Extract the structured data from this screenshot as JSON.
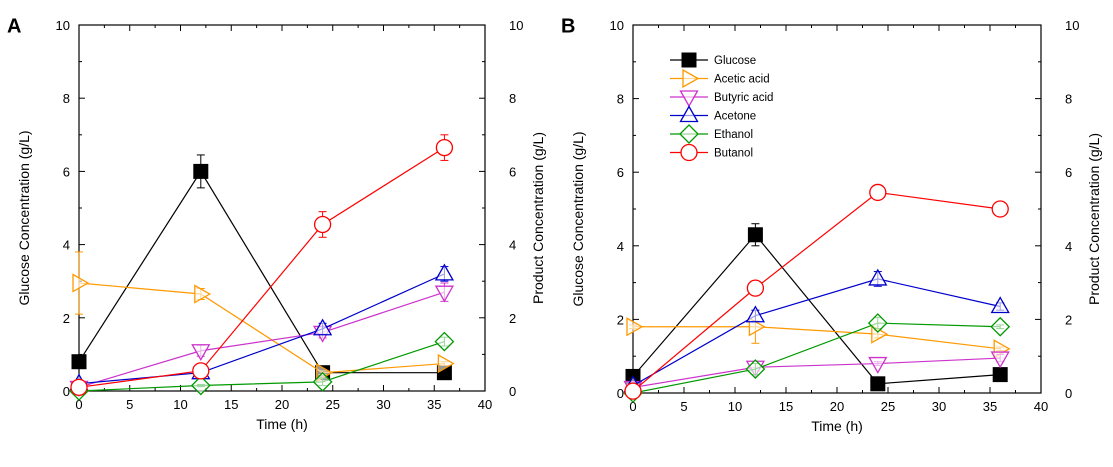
{
  "chart_data": [
    {
      "type": "line",
      "panel_label": "A",
      "xlabel": "Time (h)",
      "ylabel_left": "Glucose Concentration (g/L)",
      "ylabel_right": "Product Concentration (g/L)",
      "xlim": [
        0,
        40
      ],
      "ylim_left": [
        0,
        10
      ],
      "ylim_right": [
        0,
        10
      ],
      "xticks": [
        0,
        5,
        10,
        15,
        20,
        25,
        30,
        35,
        40
      ],
      "yticks": [
        0,
        2,
        4,
        6,
        8,
        10
      ],
      "grid": false,
      "legend": "none",
      "series": [
        {
          "name": "Glucose",
          "axis": "left",
          "color": "#000000",
          "marker": "square-filled",
          "x": [
            0,
            12,
            24,
            36
          ],
          "y": [
            0.8,
            6.0,
            0.5,
            0.5
          ],
          "err": [
            0.05,
            0.45,
            0.05,
            0.05
          ]
        },
        {
          "name": "Acetic acid",
          "axis": "right",
          "color": "#FF9900",
          "marker": "triangle-right",
          "x": [
            0,
            12,
            24,
            36
          ],
          "y": [
            2.95,
            2.65,
            0.5,
            0.75
          ],
          "err": [
            0.85,
            0.15,
            0.05,
            0.05
          ]
        },
        {
          "name": "Butyric acid",
          "axis": "right",
          "color": "#CC33CC",
          "marker": "triangle-down",
          "x": [
            0,
            12,
            24,
            36
          ],
          "y": [
            0.1,
            1.1,
            1.6,
            2.7
          ],
          "err": [
            0.05,
            0.15,
            0.15,
            0.25
          ]
        },
        {
          "name": "Acetone",
          "axis": "right",
          "color": "#0000CC",
          "marker": "triangle-up",
          "x": [
            0,
            12,
            24,
            36
          ],
          "y": [
            0.2,
            0.5,
            1.7,
            3.2
          ],
          "err": [
            0.05,
            0.05,
            0.15,
            0.2
          ]
        },
        {
          "name": "Ethanol",
          "axis": "right",
          "color": "#009900",
          "marker": "diamond",
          "x": [
            0,
            12,
            24,
            36
          ],
          "y": [
            0.0,
            0.15,
            0.25,
            1.35
          ],
          "err": [
            0.02,
            0.03,
            0.1,
            0.12
          ]
        },
        {
          "name": "Butanol",
          "axis": "right",
          "color": "#FF0000",
          "marker": "circle",
          "x": [
            0,
            12,
            24,
            36
          ],
          "y": [
            0.1,
            0.55,
            4.55,
            6.65
          ],
          "err": [
            0.05,
            0.12,
            0.35,
            0.35
          ]
        }
      ]
    },
    {
      "type": "line",
      "panel_label": "B",
      "xlabel": "Time (h)",
      "ylabel_left": "Glucose Concentration (g/L)",
      "ylabel_right": "Product Concentration (g/L)",
      "xlim": [
        0,
        40
      ],
      "ylim_left": [
        0,
        10
      ],
      "ylim_right": [
        0,
        10
      ],
      "xticks": [
        0,
        5,
        10,
        15,
        20,
        25,
        30,
        35,
        40
      ],
      "yticks": [
        0,
        2,
        4,
        6,
        8,
        10
      ],
      "grid": false,
      "legend": "top-left",
      "series": [
        {
          "name": "Glucose",
          "axis": "left",
          "color": "#000000",
          "marker": "square-filled",
          "x": [
            0,
            12,
            24,
            36
          ],
          "y": [
            0.45,
            4.3,
            0.25,
            0.5
          ],
          "err": [
            0.05,
            0.3,
            0.05,
            0.05
          ]
        },
        {
          "name": "Acetic acid",
          "axis": "right",
          "color": "#FF9900",
          "marker": "triangle-right",
          "x": [
            0,
            12,
            24,
            36
          ],
          "y": [
            1.8,
            1.8,
            1.6,
            1.2
          ],
          "err": [
            0.05,
            0.45,
            0.1,
            0.05
          ]
        },
        {
          "name": "Butyric acid",
          "axis": "right",
          "color": "#CC33CC",
          "marker": "triangle-down",
          "x": [
            0,
            12,
            24,
            36
          ],
          "y": [
            0.15,
            0.7,
            0.8,
            0.95
          ],
          "err": [
            0.03,
            0.1,
            0.05,
            0.1
          ]
        },
        {
          "name": "Acetone",
          "axis": "right",
          "color": "#0000CC",
          "marker": "triangle-up",
          "x": [
            0,
            12,
            24,
            36
          ],
          "y": [
            0.2,
            2.1,
            3.1,
            2.35
          ],
          "err": [
            0.03,
            0.15,
            0.2,
            0.1
          ]
        },
        {
          "name": "Ethanol",
          "axis": "right",
          "color": "#009900",
          "marker": "diamond",
          "x": [
            0,
            12,
            24,
            36
          ],
          "y": [
            0.0,
            0.65,
            1.9,
            1.8
          ],
          "err": [
            0.02,
            0.15,
            0.15,
            0.05
          ]
        },
        {
          "name": "Butanol",
          "axis": "right",
          "color": "#FF0000",
          "marker": "circle",
          "x": [
            0,
            12,
            24,
            36
          ],
          "y": [
            0.05,
            2.85,
            5.45,
            5.0
          ],
          "err": [
            0.03,
            0.1,
            0.1,
            0.1
          ]
        }
      ]
    }
  ]
}
